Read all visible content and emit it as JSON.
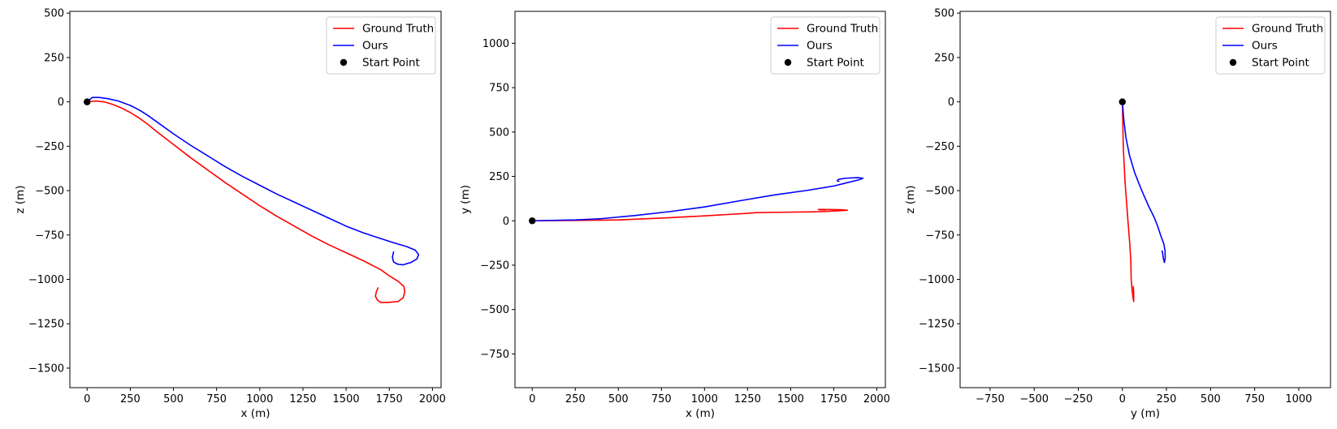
{
  "legend_labels": {
    "gt": "Ground Truth",
    "ours": "Ours",
    "start": "Start Point"
  },
  "colors": {
    "gt": "#ff0000",
    "ours": "#0000ff",
    "start": "#000000"
  },
  "chart_data": [
    {
      "type": "line",
      "xlabel": "x (m)",
      "ylabel": "z (m)",
      "xlim": [
        -100,
        2050
      ],
      "ylim": [
        -1610,
        510
      ],
      "xticks": [
        0,
        250,
        500,
        750,
        1000,
        1250,
        1500,
        1750,
        2000
      ],
      "yticks": [
        500,
        250,
        0,
        -250,
        -500,
        -750,
        -1000,
        -1250,
        -1500
      ],
      "legend": "top-right",
      "grid": false,
      "start_point": [
        0,
        0
      ],
      "series": [
        {
          "name": "Ground Truth",
          "color": "#ff0000",
          "points": [
            [
              0,
              0
            ],
            [
              50,
              5
            ],
            [
              100,
              0
            ],
            [
              150,
              -15
            ],
            [
              200,
              -35
            ],
            [
              250,
              -60
            ],
            [
              300,
              -90
            ],
            [
              350,
              -125
            ],
            [
              400,
              -165
            ],
            [
              500,
              -240
            ],
            [
              600,
              -315
            ],
            [
              700,
              -385
            ],
            [
              800,
              -455
            ],
            [
              900,
              -520
            ],
            [
              1000,
              -585
            ],
            [
              1100,
              -645
            ],
            [
              1200,
              -700
            ],
            [
              1300,
              -755
            ],
            [
              1400,
              -805
            ],
            [
              1500,
              -850
            ],
            [
              1600,
              -895
            ],
            [
              1700,
              -945
            ],
            [
              1750,
              -980
            ],
            [
              1800,
              -1010
            ],
            [
              1835,
              -1040
            ],
            [
              1840,
              -1070
            ],
            [
              1830,
              -1105
            ],
            [
              1800,
              -1125
            ],
            [
              1740,
              -1130
            ],
            [
              1700,
              -1130
            ],
            [
              1680,
              -1115
            ],
            [
              1670,
              -1095
            ],
            [
              1675,
              -1070
            ],
            [
              1685,
              -1048
            ]
          ]
        },
        {
          "name": "Ours",
          "color": "#0000ff",
          "points": [
            [
              0,
              0
            ],
            [
              30,
              25
            ],
            [
              70,
              25
            ],
            [
              120,
              18
            ],
            [
              180,
              5
            ],
            [
              250,
              -20
            ],
            [
              300,
              -45
            ],
            [
              350,
              -75
            ],
            [
              400,
              -110
            ],
            [
              500,
              -180
            ],
            [
              600,
              -245
            ],
            [
              700,
              -305
            ],
            [
              800,
              -365
            ],
            [
              900,
              -420
            ],
            [
              1000,
              -470
            ],
            [
              1100,
              -520
            ],
            [
              1200,
              -565
            ],
            [
              1300,
              -610
            ],
            [
              1400,
              -655
            ],
            [
              1500,
              -700
            ],
            [
              1600,
              -738
            ],
            [
              1700,
              -770
            ],
            [
              1780,
              -795
            ],
            [
              1850,
              -815
            ],
            [
              1900,
              -835
            ],
            [
              1920,
              -860
            ],
            [
              1910,
              -885
            ],
            [
              1875,
              -905
            ],
            [
              1830,
              -918
            ],
            [
              1800,
              -915
            ],
            [
              1775,
              -902
            ],
            [
              1768,
              -875
            ],
            [
              1775,
              -845
            ]
          ]
        }
      ]
    },
    {
      "type": "line",
      "xlabel": "x (m)",
      "ylabel": "y (m)",
      "xlim": [
        -100,
        2050
      ],
      "ylim": [
        -940,
        1180
      ],
      "xticks": [
        0,
        250,
        500,
        750,
        1000,
        1250,
        1500,
        1750,
        2000
      ],
      "yticks": [
        1000,
        750,
        500,
        250,
        0,
        -250,
        -500,
        -750
      ],
      "legend": "top-right",
      "grid": false,
      "start_point": [
        0,
        0
      ],
      "series": [
        {
          "name": "Ground Truth",
          "color": "#ff0000",
          "points": [
            [
              0,
              0
            ],
            [
              250,
              2
            ],
            [
              500,
              5
            ],
            [
              750,
              15
            ],
            [
              1000,
              28
            ],
            [
              1250,
              42
            ],
            [
              1300,
              46
            ],
            [
              1450,
              48
            ],
            [
              1600,
              50
            ],
            [
              1700,
              52
            ],
            [
              1780,
              57
            ],
            [
              1830,
              59
            ],
            [
              1800,
              62
            ],
            [
              1750,
              63
            ],
            [
              1700,
              64
            ],
            [
              1660,
              64
            ],
            [
              1670,
              62
            ],
            [
              1700,
              60
            ]
          ]
        },
        {
          "name": "Ours",
          "color": "#0000ff",
          "points": [
            [
              0,
              0
            ],
            [
              250,
              5
            ],
            [
              400,
              12
            ],
            [
              600,
              30
            ],
            [
              800,
              52
            ],
            [
              1000,
              78
            ],
            [
              1200,
              112
            ],
            [
              1400,
              145
            ],
            [
              1600,
              172
            ],
            [
              1750,
              196
            ],
            [
              1830,
              215
            ],
            [
              1900,
              232
            ],
            [
              1920,
              240
            ],
            [
              1890,
              243
            ],
            [
              1820,
              240
            ],
            [
              1780,
              234
            ],
            [
              1770,
              226
            ],
            [
              1780,
              222
            ]
          ]
        }
      ]
    },
    {
      "type": "line",
      "xlabel": "y (m)",
      "ylabel": "z (m)",
      "xlim": [
        -920,
        1180
      ],
      "ylim": [
        -1610,
        510
      ],
      "xticks": [
        -750,
        -500,
        -250,
        0,
        250,
        500,
        750,
        1000
      ],
      "yticks": [
        500,
        250,
        0,
        -250,
        -500,
        -750,
        -1000,
        -1250,
        -1500
      ],
      "legend": "top-right",
      "grid": false,
      "start_point": [
        0,
        0
      ],
      "series": [
        {
          "name": "Ground Truth",
          "color": "#ff0000",
          "points": [
            [
              0,
              0
            ],
            [
              2,
              -100
            ],
            [
              5,
              -250
            ],
            [
              15,
              -450
            ],
            [
              30,
              -650
            ],
            [
              42,
              -800
            ],
            [
              48,
              -900
            ],
            [
              50,
              -1000
            ],
            [
              55,
              -1060
            ],
            [
              60,
              -1100
            ],
            [
              64,
              -1125
            ],
            [
              64,
              -1070
            ],
            [
              62,
              -1040
            ]
          ]
        },
        {
          "name": "Ours",
          "color": "#0000ff",
          "points": [
            [
              0,
              0
            ],
            [
              8,
              -100
            ],
            [
              20,
              -200
            ],
            [
              40,
              -300
            ],
            [
              70,
              -400
            ],
            [
              110,
              -500
            ],
            [
              150,
              -590
            ],
            [
              180,
              -650
            ],
            [
              200,
              -700
            ],
            [
              220,
              -760
            ],
            [
              235,
              -800
            ],
            [
              242,
              -840
            ],
            [
              243,
              -880
            ],
            [
              238,
              -905
            ],
            [
              232,
              -880
            ],
            [
              228,
              -850
            ],
            [
              225,
              -840
            ]
          ]
        }
      ]
    }
  ]
}
